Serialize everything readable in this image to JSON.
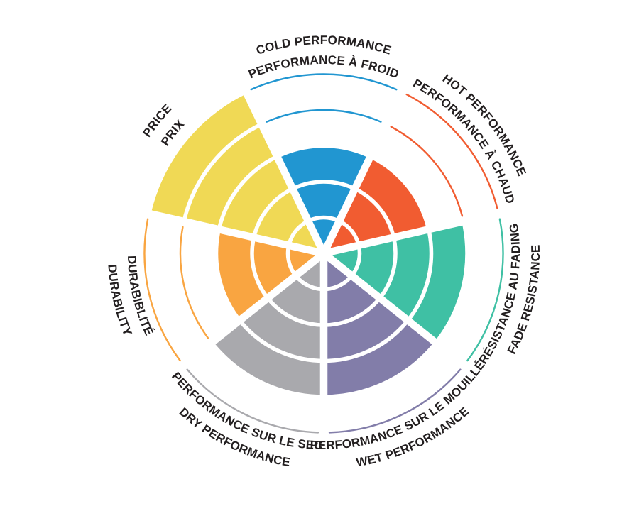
{
  "chart_data": {
    "type": "radial-sector-wheel",
    "title": "",
    "scale": {
      "min": 0,
      "max": 5,
      "rings": 5
    },
    "grid": "concentric-circles-with-radial-dividers",
    "legend_position": "labels-curved-around-wheel",
    "background": "#FFFFFF",
    "label_text_color": "#231F20",
    "sectors": [
      {
        "id": "cold",
        "label_en": "COLD PERFORMANCE",
        "label_fr": "PERFORMANCE À FROID",
        "value": 3,
        "color": "#2196D1"
      },
      {
        "id": "hot",
        "label_en": "HOT PERFORMANCE",
        "label_fr": "PERFORMANCE À CHAUD",
        "value": 3,
        "color": "#F15C31"
      },
      {
        "id": "fade",
        "label_en": "FADE RESISTANCE",
        "label_fr": "RÉSISTANCE AU FADING",
        "value": 4,
        "color": "#3FC0A4"
      },
      {
        "id": "wet",
        "label_en": "WET PERFORMANCE",
        "label_fr": "PERFORMANCE SUR LE MOUILLÉ",
        "value": 4,
        "color": "#827DA9"
      },
      {
        "id": "dry",
        "label_en": "DRY PERFORMANCE",
        "label_fr": "PERFORMANCE SUR LE SEC",
        "value": 4,
        "color": "#A9A9AD"
      },
      {
        "id": "durability",
        "label_en": "DURABILITY",
        "label_fr": "DURABIBLITÉ",
        "value": 3,
        "color": "#F9A541"
      },
      {
        "id": "price",
        "label_en": "PRICE",
        "label_fr": "PRIX",
        "value": 5,
        "color": "#F0D955"
      }
    ]
  }
}
